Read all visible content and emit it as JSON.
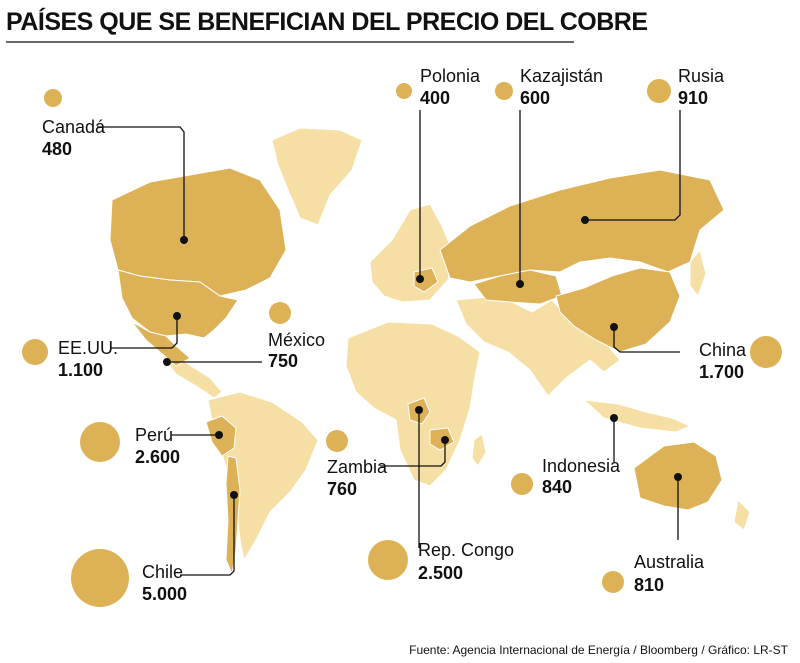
{
  "title": "PAÍSES QUE SE BENEFICIAN DEL PRECIO DEL COBRE",
  "footer": "Fuente: Agencia Internacional de Energía / Bloomberg / Gráfico: LR-ST",
  "colors": {
    "highlight": "#DDB155",
    "land": "#F6DFA4",
    "text": "#111111"
  },
  "countries": [
    {
      "id": "canada",
      "name": "Canadá",
      "value": "480"
    },
    {
      "id": "eeuu",
      "name": "EE.UU.",
      "value": "1.100"
    },
    {
      "id": "mexico",
      "name": "México",
      "value": "750"
    },
    {
      "id": "peru",
      "name": "Perú",
      "value": "2.600"
    },
    {
      "id": "chile",
      "name": "Chile",
      "value": "5.000"
    },
    {
      "id": "zambia",
      "name": "Zambia",
      "value": "760"
    },
    {
      "id": "congo",
      "name": "Rep. Congo",
      "value": "2.500"
    },
    {
      "id": "polonia",
      "name": "Polonia",
      "value": "400"
    },
    {
      "id": "kazajistan",
      "name": "Kazajistán",
      "value": "600"
    },
    {
      "id": "rusia",
      "name": "Rusia",
      "value": "910"
    },
    {
      "id": "china",
      "name": "China",
      "value": "1.700"
    },
    {
      "id": "indonesia",
      "name": "Indonesia",
      "value": "840"
    },
    {
      "id": "australia",
      "name": "Australia",
      "value": "810"
    }
  ]
}
